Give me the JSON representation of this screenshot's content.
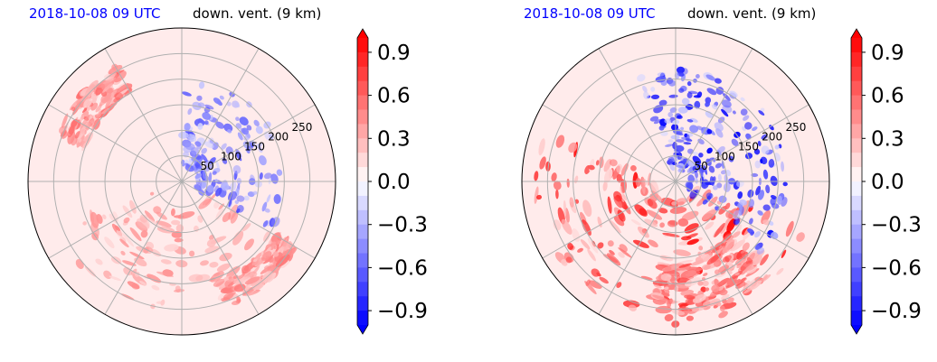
{
  "palette": {
    "negative": "#0000ff",
    "positive": "#ff0000",
    "neutral": "#ffffff",
    "grid": "#b0b0b0"
  },
  "panels": [
    {
      "title_left": "2018-10-08 09 UTC",
      "title_right": "down. vent. (9 km)"
    },
    {
      "title_left": "2018-10-08 09 UTC",
      "title_right": "down. vent. (9 km)"
    }
  ],
  "chart_data": [
    {
      "type": "heatmap",
      "projection": "polar",
      "field": "down. vent. (9 km)",
      "radial_ticks": [
        50,
        100,
        150,
        200,
        250
      ],
      "radial_range": [
        0,
        300
      ],
      "colorbar": {
        "ticks": [
          -0.9,
          -0.6,
          -0.3,
          0.0,
          0.3,
          0.6,
          0.9
        ],
        "tick_labels": [
          "−0.9",
          "−0.6",
          "−0.3",
          "0.0",
          "0.3",
          "0.6",
          "0.9"
        ],
        "range": [
          -1.0,
          1.0
        ],
        "extend": "both",
        "colormap": "bwr"
      },
      "features": [
        {
          "sign": "positive",
          "r": [
            60,
            260
          ],
          "theta_deg": [
            200,
            330
          ],
          "strength": 0.35
        },
        {
          "sign": "positive",
          "r": [
            200,
            260
          ],
          "theta_deg": [
            120,
            160
          ],
          "strength": 0.45
        },
        {
          "sign": "positive",
          "r": [
            210,
            260
          ],
          "theta_deg": [
            290,
            330
          ],
          "strength": 0.4
        },
        {
          "sign": "negative",
          "r": [
            30,
            200
          ],
          "theta_deg": [
            -30,
            90
          ],
          "strength": 0.6
        }
      ]
    },
    {
      "type": "heatmap",
      "projection": "polar",
      "field": "down. vent. (9 km)",
      "radial_ticks": [
        50,
        100,
        150,
        200,
        250
      ],
      "radial_range": [
        0,
        300
      ],
      "colorbar": {
        "ticks": [
          -0.9,
          -0.6,
          -0.3,
          0.0,
          0.3,
          0.6,
          0.9
        ],
        "tick_labels": [
          "−0.9",
          "−0.6",
          "−0.3",
          "0.0",
          "0.3",
          "0.6",
          "0.9"
        ],
        "range": [
          -1.0,
          1.0
        ],
        "extend": "both",
        "colormap": "bwr"
      },
      "features": [
        {
          "sign": "positive",
          "r": [
            40,
            280
          ],
          "theta_deg": [
            160,
            340
          ],
          "strength": 0.85
        },
        {
          "sign": "positive",
          "r": [
            150,
            260
          ],
          "theta_deg": [
            260,
            320
          ],
          "strength": 0.6
        },
        {
          "sign": "negative",
          "r": [
            20,
            220
          ],
          "theta_deg": [
            -40,
            110
          ],
          "strength": 0.95
        }
      ]
    }
  ]
}
